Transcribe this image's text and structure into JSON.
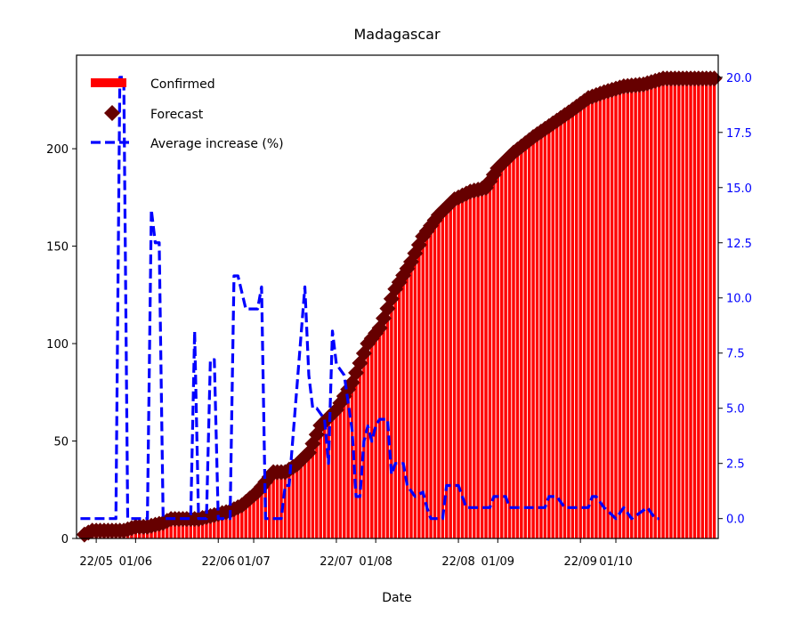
{
  "chart_data": {
    "type": "bar",
    "title": "Madagascar",
    "xlabel": "Date",
    "ylabel": "",
    "ylim": [
      0,
      248
    ],
    "y2lim": [
      -0.9,
      21.0
    ],
    "yticks": [
      0,
      50,
      100,
      150,
      200
    ],
    "y2ticks": [
      "0.0",
      "2.5",
      "5.0",
      "7.5",
      "10.0",
      "12.5",
      "15.0",
      "17.5",
      "20.0"
    ],
    "xrange": [
      "2020-05-17",
      "2020-10-27"
    ],
    "xticks": [
      {
        "date": "2020-05-22",
        "label": "22/05"
      },
      {
        "date": "2020-06-01",
        "label": "01/06"
      },
      {
        "date": "2020-06-22",
        "label": "22/06"
      },
      {
        "date": "2020-07-01",
        "label": "01/07"
      },
      {
        "date": "2020-07-22",
        "label": "22/07"
      },
      {
        "date": "2020-08-01",
        "label": "01/08"
      },
      {
        "date": "2020-08-22",
        "label": "22/08"
      },
      {
        "date": "2020-09-01",
        "label": "01/09"
      },
      {
        "date": "2020-09-22",
        "label": "22/09"
      },
      {
        "date": "2020-10-01",
        "label": "01/10"
      }
    ],
    "legend_position": "top-left",
    "series": [
      {
        "name": "Confirmed",
        "kind": "bar",
        "axis": "left",
        "color": "#ff0000",
        "points": [
          [
            "2020-05-19",
            2
          ],
          [
            "2020-05-21",
            4
          ],
          [
            "2020-05-29",
            4
          ],
          [
            "2020-06-01",
            6
          ],
          [
            "2020-06-04",
            6
          ],
          [
            "2020-06-08",
            8
          ],
          [
            "2020-06-10",
            10
          ],
          [
            "2020-06-13",
            10
          ],
          [
            "2020-06-17",
            10
          ],
          [
            "2020-06-21",
            12
          ],
          [
            "2020-06-25",
            14
          ],
          [
            "2020-06-28",
            17
          ],
          [
            "2020-07-02",
            24
          ],
          [
            "2020-07-06",
            34
          ],
          [
            "2020-07-09",
            34
          ],
          [
            "2020-07-12",
            38
          ],
          [
            "2020-07-15",
            44
          ],
          [
            "2020-07-18",
            58
          ],
          [
            "2020-07-22",
            66
          ],
          [
            "2020-07-26",
            80
          ],
          [
            "2020-07-30",
            100
          ],
          [
            "2020-08-02",
            108
          ],
          [
            "2020-08-06",
            128
          ],
          [
            "2020-08-10",
            142
          ],
          [
            "2020-08-13",
            155
          ],
          [
            "2020-08-17",
            166
          ],
          [
            "2020-08-21",
            174
          ],
          [
            "2020-08-25",
            178
          ],
          [
            "2020-08-29",
            180
          ],
          [
            "2020-09-01",
            190
          ],
          [
            "2020-09-05",
            198
          ],
          [
            "2020-09-10",
            206
          ],
          [
            "2020-09-15",
            213
          ],
          [
            "2020-09-20",
            220
          ],
          [
            "2020-09-24",
            226
          ],
          [
            "2020-09-28",
            229
          ],
          [
            "2020-10-03",
            232
          ],
          [
            "2020-10-08",
            233
          ],
          [
            "2020-10-13",
            236
          ],
          [
            "2020-10-20",
            236
          ],
          [
            "2020-10-26",
            236
          ]
        ]
      },
      {
        "name": "Forecast",
        "kind": "marker",
        "axis": "left",
        "color": "#660000",
        "points": [
          [
            "2020-05-19",
            2
          ],
          [
            "2020-05-21",
            4
          ],
          [
            "2020-05-29",
            4
          ],
          [
            "2020-06-01",
            6
          ],
          [
            "2020-06-04",
            6
          ],
          [
            "2020-06-08",
            8
          ],
          [
            "2020-06-10",
            10
          ],
          [
            "2020-06-13",
            10
          ],
          [
            "2020-06-17",
            10
          ],
          [
            "2020-06-21",
            12
          ],
          [
            "2020-06-25",
            14
          ],
          [
            "2020-06-28",
            17
          ],
          [
            "2020-07-02",
            24
          ],
          [
            "2020-07-06",
            34
          ],
          [
            "2020-07-09",
            34
          ],
          [
            "2020-07-12",
            38
          ],
          [
            "2020-07-15",
            44
          ],
          [
            "2020-07-18",
            58
          ],
          [
            "2020-07-22",
            66
          ],
          [
            "2020-07-26",
            80
          ],
          [
            "2020-07-30",
            100
          ],
          [
            "2020-08-02",
            108
          ],
          [
            "2020-08-06",
            128
          ],
          [
            "2020-08-10",
            142
          ],
          [
            "2020-08-13",
            155
          ],
          [
            "2020-08-17",
            166
          ],
          [
            "2020-08-21",
            174
          ],
          [
            "2020-08-25",
            178
          ],
          [
            "2020-08-29",
            180
          ],
          [
            "2020-09-01",
            190
          ],
          [
            "2020-09-05",
            198
          ],
          [
            "2020-09-10",
            206
          ],
          [
            "2020-09-15",
            213
          ],
          [
            "2020-09-20",
            220
          ],
          [
            "2020-09-24",
            226
          ],
          [
            "2020-09-28",
            229
          ],
          [
            "2020-10-03",
            232
          ],
          [
            "2020-10-08",
            233
          ],
          [
            "2020-10-13",
            236
          ],
          [
            "2020-10-20",
            236
          ],
          [
            "2020-10-26",
            236
          ]
        ]
      },
      {
        "name": "Average increase (%)",
        "kind": "line",
        "axis": "right",
        "color": "#0000ff",
        "points": [
          [
            "2020-05-18",
            0
          ],
          [
            "2020-05-27",
            0
          ],
          [
            "2020-05-28",
            20
          ],
          [
            "2020-05-29",
            20
          ],
          [
            "2020-05-30",
            0
          ],
          [
            "2020-06-04",
            0
          ],
          [
            "2020-06-05",
            14
          ],
          [
            "2020-06-06",
            12.5
          ],
          [
            "2020-06-07",
            12.5
          ],
          [
            "2020-06-08",
            0
          ],
          [
            "2020-06-15",
            0
          ],
          [
            "2020-06-16",
            8.5
          ],
          [
            "2020-06-17",
            0
          ],
          [
            "2020-06-19",
            0
          ],
          [
            "2020-06-20",
            7.2
          ],
          [
            "2020-06-21",
            7.2
          ],
          [
            "2020-06-22",
            0
          ],
          [
            "2020-06-25",
            0
          ],
          [
            "2020-06-26",
            11
          ],
          [
            "2020-06-27",
            11
          ],
          [
            "2020-06-29",
            9.5
          ],
          [
            "2020-07-02",
            9.5
          ],
          [
            "2020-07-03",
            10.5
          ],
          [
            "2020-07-04",
            0
          ],
          [
            "2020-07-08",
            0
          ],
          [
            "2020-07-09",
            1.5
          ],
          [
            "2020-07-10",
            1.5
          ],
          [
            "2020-07-14",
            10.5
          ],
          [
            "2020-07-15",
            6.5
          ],
          [
            "2020-07-16",
            5
          ],
          [
            "2020-07-17",
            5
          ],
          [
            "2020-07-19",
            4.5
          ],
          [
            "2020-07-20",
            2.5
          ],
          [
            "2020-07-21",
            8.5
          ],
          [
            "2020-07-22",
            7
          ],
          [
            "2020-07-24",
            6.5
          ],
          [
            "2020-07-26",
            4
          ],
          [
            "2020-07-27",
            1
          ],
          [
            "2020-07-28",
            1
          ],
          [
            "2020-07-29",
            3.5
          ],
          [
            "2020-07-30",
            4.2
          ],
          [
            "2020-07-31",
            3.5
          ],
          [
            "2020-08-01",
            4.2
          ],
          [
            "2020-08-02",
            4.5
          ],
          [
            "2020-08-04",
            4.5
          ],
          [
            "2020-08-05",
            2
          ],
          [
            "2020-08-06",
            2.5
          ],
          [
            "2020-08-08",
            2.5
          ],
          [
            "2020-08-09",
            1.5
          ],
          [
            "2020-08-11",
            1
          ],
          [
            "2020-08-13",
            1.2
          ],
          [
            "2020-08-14",
            0.5
          ],
          [
            "2020-08-15",
            0
          ],
          [
            "2020-08-18",
            0
          ],
          [
            "2020-08-19",
            1.5
          ],
          [
            "2020-08-22",
            1.5
          ],
          [
            "2020-08-24",
            0.5
          ],
          [
            "2020-08-30",
            0.5
          ],
          [
            "2020-08-31",
            1
          ],
          [
            "2020-09-03",
            1
          ],
          [
            "2020-09-04",
            0.5
          ],
          [
            "2020-09-13",
            0.5
          ],
          [
            "2020-09-14",
            1
          ],
          [
            "2020-09-16",
            1
          ],
          [
            "2020-09-18",
            0.5
          ],
          [
            "2020-09-24",
            0.5
          ],
          [
            "2020-09-25",
            1
          ],
          [
            "2020-09-26",
            1
          ],
          [
            "2020-09-28",
            0.5
          ],
          [
            "2020-10-01",
            0
          ],
          [
            "2020-10-03",
            0.5
          ],
          [
            "2020-10-05",
            0
          ],
          [
            "2020-10-09",
            0.5
          ],
          [
            "2020-10-11",
            0
          ],
          [
            "2020-10-12",
            0
          ]
        ]
      }
    ]
  }
}
